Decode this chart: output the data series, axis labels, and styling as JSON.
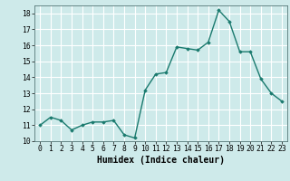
{
  "x": [
    0,
    1,
    2,
    3,
    4,
    5,
    6,
    7,
    8,
    9,
    10,
    11,
    12,
    13,
    14,
    15,
    16,
    17,
    18,
    19,
    20,
    21,
    22,
    23
  ],
  "y": [
    11.0,
    11.5,
    11.3,
    10.7,
    11.0,
    11.2,
    11.2,
    11.3,
    10.4,
    10.2,
    13.2,
    14.2,
    14.3,
    15.9,
    15.8,
    15.7,
    16.2,
    18.2,
    17.5,
    15.6,
    15.6,
    13.9,
    13.0,
    12.5
  ],
  "line_color": "#1a7a6e",
  "marker": "D",
  "marker_size": 1.8,
  "line_width": 1.0,
  "bg_color": "#ceeaea",
  "grid_color": "#ffffff",
  "xlabel": "Humidex (Indice chaleur)",
  "xlabel_fontsize": 7,
  "ylim": [
    10,
    18.5
  ],
  "xlim": [
    -0.5,
    23.5
  ],
  "yticks": [
    10,
    11,
    12,
    13,
    14,
    15,
    16,
    17,
    18
  ],
  "xticks": [
    0,
    1,
    2,
    3,
    4,
    5,
    6,
    7,
    8,
    9,
    10,
    11,
    12,
    13,
    14,
    15,
    16,
    17,
    18,
    19,
    20,
    21,
    22,
    23
  ],
  "tick_fontsize": 5.8,
  "xlabel_fontsize_bold": true
}
